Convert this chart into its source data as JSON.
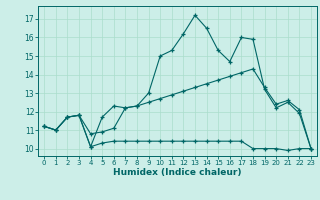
{
  "xlabel": "Humidex (Indice chaleur)",
  "bg_color": "#cceee8",
  "grid_color": "#aaddcc",
  "line_color": "#006666",
  "x_ticks": [
    0,
    1,
    2,
    3,
    4,
    5,
    6,
    7,
    8,
    9,
    10,
    11,
    12,
    13,
    14,
    15,
    16,
    17,
    18,
    19,
    20,
    21,
    22,
    23
  ],
  "y_ticks": [
    10,
    11,
    12,
    13,
    14,
    15,
    16,
    17
  ],
  "ylim": [
    9.6,
    17.7
  ],
  "xlim": [
    -0.5,
    23.5
  ],
  "line1_y": [
    11.2,
    11.0,
    11.7,
    11.8,
    10.8,
    10.9,
    11.1,
    12.2,
    12.3,
    13.0,
    15.0,
    15.3,
    16.2,
    17.2,
    16.5,
    15.3,
    14.7,
    16.0,
    15.9,
    13.2,
    12.2,
    12.5,
    11.9,
    10.0
  ],
  "line2_y": [
    11.2,
    11.0,
    11.7,
    11.8,
    10.1,
    11.7,
    12.3,
    12.2,
    12.3,
    12.5,
    12.7,
    12.9,
    13.1,
    13.3,
    13.5,
    13.7,
    13.9,
    14.1,
    14.3,
    13.3,
    12.4,
    12.6,
    12.1,
    10.0
  ],
  "line3_y": [
    11.2,
    11.0,
    11.7,
    11.8,
    10.1,
    10.3,
    10.4,
    10.4,
    10.4,
    10.4,
    10.4,
    10.4,
    10.4,
    10.4,
    10.4,
    10.4,
    10.4,
    10.4,
    10.0,
    10.0,
    10.0,
    9.9,
    10.0,
    10.0
  ]
}
